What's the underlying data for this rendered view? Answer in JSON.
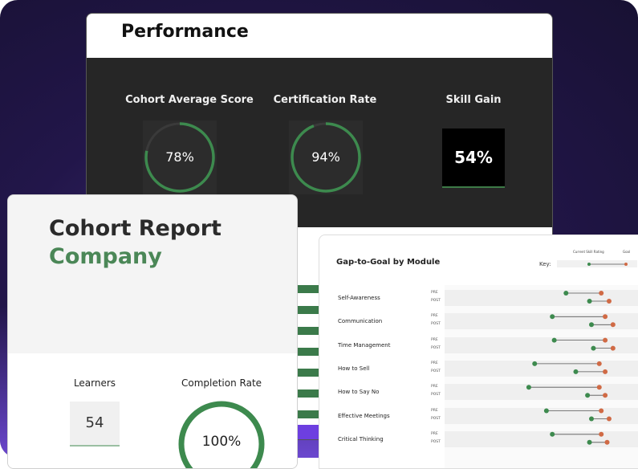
{
  "performance": {
    "title": "Performance",
    "metrics": [
      {
        "label": "Cohort Average Score",
        "value": "78%",
        "fraction": 0.78
      },
      {
        "label": "Certification Rate",
        "value": "94%",
        "fraction": 0.94
      },
      {
        "label": "Skill Gain",
        "value": "54%"
      }
    ]
  },
  "cohort": {
    "title": "Cohort Report",
    "subtitle": "Company",
    "learners_label": "Learners",
    "learners_value": "54",
    "completion_label": "Completion Rate",
    "completion_value": "100%",
    "completion_fraction": 1.0
  },
  "gap_chart": {
    "title": "Gap-to-Goal by Module",
    "key_label": "Key:",
    "legend": [
      "Current Skill Rating",
      "Goal"
    ],
    "pre_label": "PRE",
    "post_label": "POST",
    "colors": {
      "current": "#3d8a4e",
      "goal": "#d06a45"
    }
  },
  "chart_data": {
    "type": "dumbbell",
    "title": "Gap-to-Goal by Module",
    "xlim": [
      0,
      1
    ],
    "categories": [
      "Self-Awareness",
      "Communication",
      "Time Management",
      "How to Sell",
      "How to Say No",
      "Effective Meetings",
      "Critical Thinking"
    ],
    "series": [
      {
        "name": "Current Skill Rating",
        "pre": [
          0.62,
          0.55,
          0.56,
          0.46,
          0.43,
          0.52,
          0.55
        ],
        "post": [
          0.74,
          0.75,
          0.76,
          0.67,
          0.73,
          0.75,
          0.74
        ]
      },
      {
        "name": "Goal",
        "pre": [
          0.8,
          0.82,
          0.82,
          0.79,
          0.79,
          0.8,
          0.8
        ],
        "post": [
          0.84,
          0.86,
          0.86,
          0.82,
          0.82,
          0.84,
          0.83
        ]
      }
    ]
  }
}
